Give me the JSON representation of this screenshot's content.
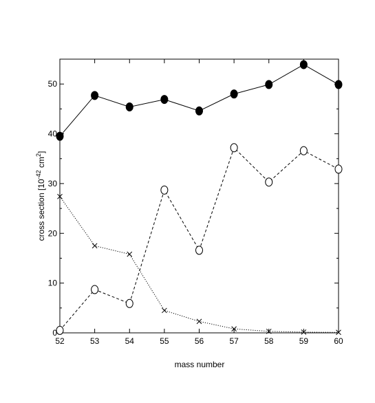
{
  "chart_data": {
    "type": "line",
    "title": "",
    "xlabel": "mass number",
    "ylabel": "cross section [10",
    "ylabel_exp1": "-42",
    "ylabel_mid": " cm",
    "ylabel_exp2": "2",
    "ylabel_end": "]",
    "xlim": [
      52,
      60
    ],
    "ylim": [
      0,
      55
    ],
    "grid": false,
    "legend": "none",
    "x_ticks": [
      52,
      53,
      54,
      55,
      56,
      57,
      58,
      59,
      60
    ],
    "y_ticks": [
      0,
      10,
      20,
      30,
      40,
      50
    ],
    "x": [
      52,
      53,
      54,
      55,
      56,
      57,
      58,
      59,
      60
    ],
    "series": [
      {
        "marker": "filled-circle",
        "line": "solid",
        "color": "#000000",
        "values": [
          39.5,
          47.7,
          45.4,
          46.9,
          44.6,
          48.0,
          49.9,
          53.9,
          49.9
        ]
      },
      {
        "marker": "open-circle",
        "line": "dashed",
        "color": "#000000",
        "values": [
          0.5,
          8.7,
          5.9,
          28.7,
          16.6,
          37.2,
          30.3,
          36.6,
          32.9
        ]
      },
      {
        "marker": "x",
        "line": "dotted",
        "color": "#000000",
        "values": [
          27.4,
          17.5,
          15.8,
          4.5,
          2.3,
          0.8,
          0.3,
          0.15,
          0.1
        ]
      }
    ]
  }
}
